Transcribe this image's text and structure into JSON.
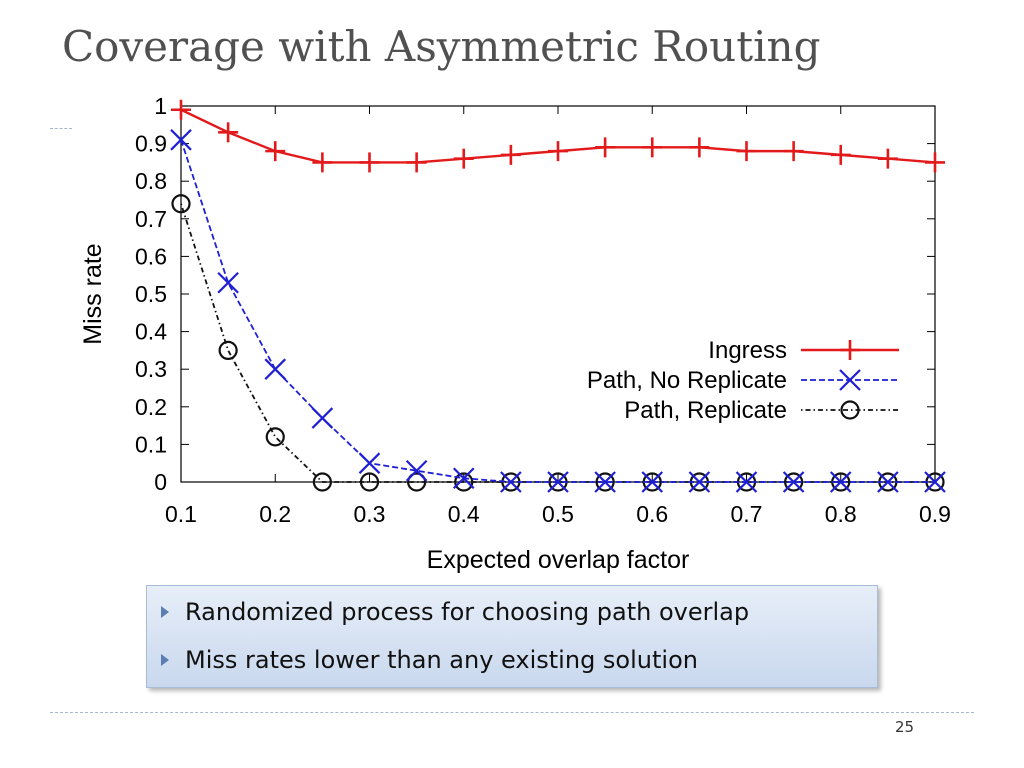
{
  "slide": {
    "title": "Coverage with Asymmetric Routing",
    "page_number": "25",
    "bullets": [
      "Randomized process for choosing path overlap",
      "Miss rates lower than any existing solution"
    ]
  },
  "chart_data": {
    "type": "line",
    "title": "",
    "xlabel": "Expected overlap factor",
    "ylabel": "Miss rate",
    "xlim": [
      0.1,
      0.9
    ],
    "ylim": [
      0,
      1
    ],
    "xticks": [
      "0.1",
      "0.2",
      "0.3",
      "0.4",
      "0.5",
      "0.6",
      "0.7",
      "0.8",
      "0.9"
    ],
    "yticks": [
      "0",
      "0.1",
      "0.2",
      "0.3",
      "0.4",
      "0.5",
      "0.6",
      "0.7",
      "0.8",
      "0.9",
      "1"
    ],
    "grid": false,
    "legend_position": "center-right",
    "x": [
      0.1,
      0.15,
      0.2,
      0.25,
      0.3,
      0.35,
      0.4,
      0.45,
      0.5,
      0.55,
      0.6,
      0.65,
      0.7,
      0.75,
      0.8,
      0.85,
      0.9
    ],
    "series": [
      {
        "name": "Ingress",
        "color": "#e31a1c",
        "marker": "plus",
        "line": "solid",
        "values": [
          0.99,
          0.93,
          0.88,
          0.85,
          0.85,
          0.85,
          0.86,
          0.87,
          0.88,
          0.89,
          0.89,
          0.89,
          0.88,
          0.88,
          0.87,
          0.86,
          0.85
        ]
      },
      {
        "name": "Path, No Replicate",
        "color": "#1f1fd6",
        "marker": "cross",
        "line": "dashed",
        "values": [
          0.91,
          0.53,
          0.3,
          0.17,
          0.05,
          0.03,
          0.01,
          0.0,
          0.0,
          0.0,
          0.0,
          0.0,
          0.0,
          0.0,
          0.0,
          0.0,
          0.0
        ]
      },
      {
        "name": "Path, Replicate",
        "color": "#111111",
        "marker": "circle",
        "line": "dashdot",
        "values": [
          0.74,
          0.35,
          0.12,
          0.0,
          0.0,
          0.0,
          0.0,
          0.0,
          0.0,
          0.0,
          0.0,
          0.0,
          0.0,
          0.0,
          0.0,
          0.0,
          0.0
        ]
      }
    ]
  }
}
